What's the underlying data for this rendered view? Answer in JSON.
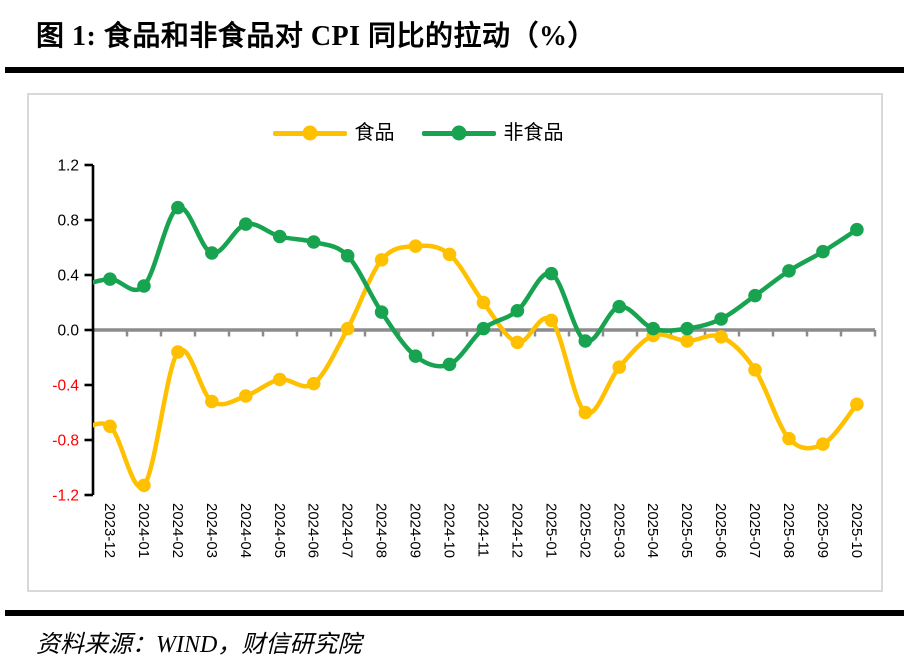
{
  "page": {
    "title": "图 1:  食品和非食品对 CPI 同比的拉动（%）",
    "source_note": "资料来源：WIND，财信研究院"
  },
  "legend": {
    "items": [
      {
        "label": "食品",
        "color": "#FFC000"
      },
      {
        "label": "非食品",
        "color": "#17A34F"
      }
    ]
  },
  "chart_data": {
    "type": "line",
    "title": "食品和非食品对 CPI 同比的拉动（%）",
    "categories": [
      "2023-12",
      "2024-01",
      "2024-02",
      "2024-03",
      "2024-04",
      "2024-05",
      "2024-06",
      "2024-07",
      "2024-08",
      "2024-09",
      "2024-10",
      "2024-11",
      "2024-12",
      "2025-01",
      "2025-02",
      "2025-03",
      "2025-04",
      "2025-05",
      "2025-06",
      "2025-07",
      "2025-08",
      "2025-09",
      "2025-10"
    ],
    "series": [
      {
        "name": "食品",
        "color": "#FFC000",
        "values": [
          -0.7,
          -1.13,
          -0.16,
          -0.52,
          -0.48,
          -0.36,
          -0.39,
          0.01,
          0.51,
          0.61,
          0.55,
          0.2,
          -0.09,
          0.07,
          -0.6,
          -0.27,
          -0.04,
          -0.08,
          -0.05,
          -0.29,
          -0.79,
          -0.83,
          -0.54
        ]
      },
      {
        "name": "非食品",
        "color": "#17A34F",
        "values": [
          0.37,
          0.32,
          0.89,
          0.56,
          0.77,
          0.68,
          0.64,
          0.54,
          0.13,
          -0.19,
          -0.25,
          0.01,
          0.14,
          0.41,
          -0.08,
          0.17,
          0.01,
          0.01,
          0.08,
          0.25,
          0.43,
          0.57,
          0.73
        ]
      }
    ],
    "clipped_lead_in_values": {
      "食品": -0.75,
      "非食品": 0.31
    },
    "ylim": [
      -1.2,
      1.2
    ],
    "y_tick_step": 0.4,
    "y_ticks": [
      "1.2",
      "0.8",
      "0.4",
      "0.0",
      "-0.4",
      "-0.8",
      "-1.2"
    ],
    "negative_label_color": "#FF0000",
    "positive_label_color": "#000000",
    "zero_line_color": "#8C8C8C",
    "axis_color": "#000000",
    "x_tick_labels_rotation_deg": 90,
    "smoothed": true,
    "grid": false,
    "marker": "circle",
    "legend_position": "top-center"
  }
}
